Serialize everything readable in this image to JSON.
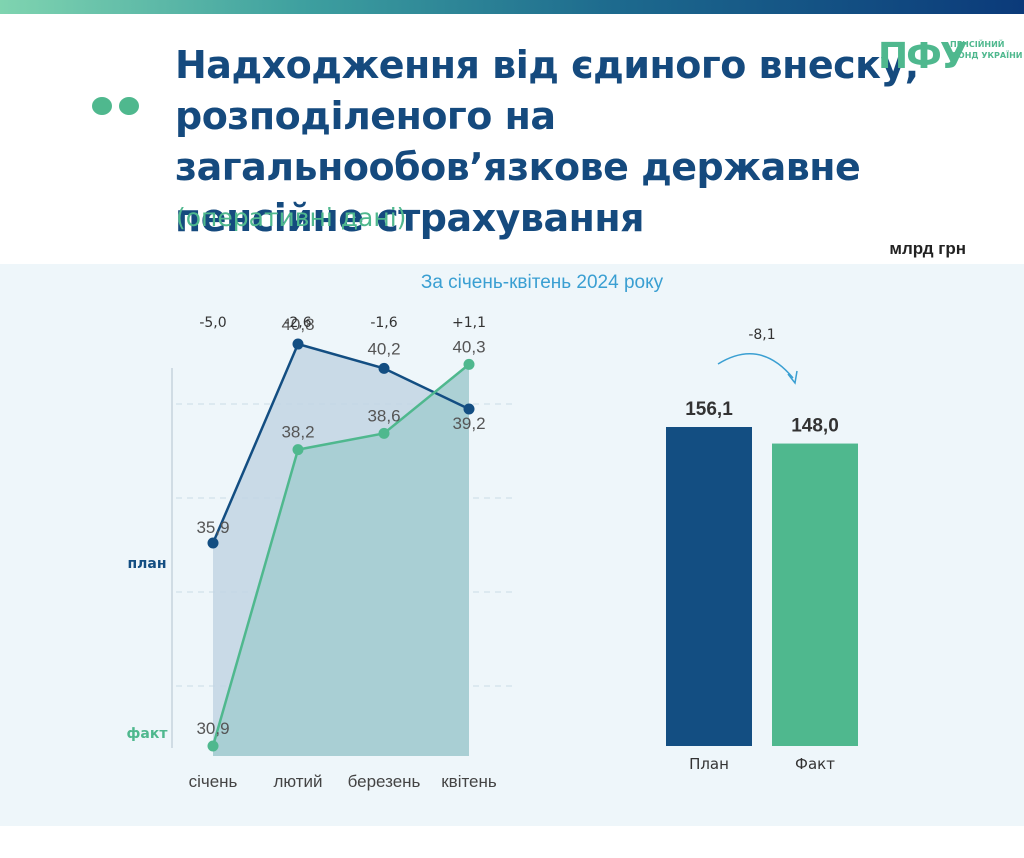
{
  "header": {
    "title": "Надходження від єдиного внеску, розподіленого на загальнообов’язкове державне пенсійне страхування",
    "subtitle": "(оперативні дані)",
    "unit": "млрд грн",
    "logo": {
      "mark": "ПФУ",
      "text": "ПЕНСІЙНИЙ ФОНД УКРАЇНИ"
    }
  },
  "colors": {
    "plan": "#134e82",
    "fact": "#4fb88e",
    "accent": "#3a9fd2"
  },
  "chart_data": [
    {
      "type": "line",
      "categories": [
        "січень",
        "лютий",
        "березень",
        "квітень"
      ],
      "series": [
        {
          "name": "план",
          "values": [
            35.9,
            40.8,
            40.2,
            39.2
          ],
          "labels": [
            "35,9",
            "40,8",
            "40,2",
            "39,2"
          ]
        },
        {
          "name": "факт",
          "values": [
            30.9,
            38.2,
            38.6,
            40.3
          ],
          "labels": [
            "30,9",
            "38,2",
            "38,6",
            "40,3"
          ]
        }
      ],
      "differences": [
        "-5,0",
        "-2,6",
        "-1,6",
        "+1,1"
      ],
      "grid": true
    },
    {
      "type": "bar",
      "title": "За січень-квітень 2024 року",
      "categories": [
        "План",
        "Факт"
      ],
      "values": [
        156.1,
        148.0
      ],
      "labels": [
        "156,1",
        "148,0"
      ],
      "difference": "-8,1"
    }
  ]
}
